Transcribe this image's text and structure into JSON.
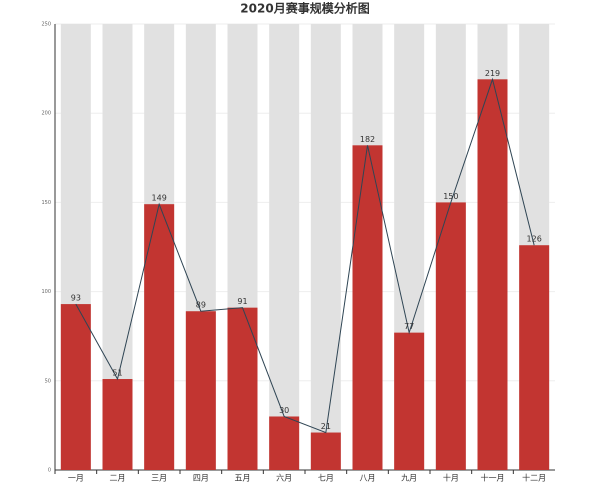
{
  "chart_data": {
    "type": "bar",
    "title": "2020月赛事规模分析图",
    "categories": [
      "一月",
      "二月",
      "三月",
      "四月",
      "五月",
      "六月",
      "七月",
      "八月",
      "九月",
      "十月",
      "十一月",
      "十二月"
    ],
    "values": [
      93,
      51,
      149,
      89,
      91,
      30,
      21,
      182,
      77,
      150,
      219,
      126
    ],
    "color": "#c23531",
    "line": true,
    "line_color": "#2f4554",
    "background_bars": true,
    "ylim": [
      0,
      250
    ],
    "yticks": [
      0,
      50,
      100,
      150,
      200,
      250
    ],
    "grid": true
  }
}
